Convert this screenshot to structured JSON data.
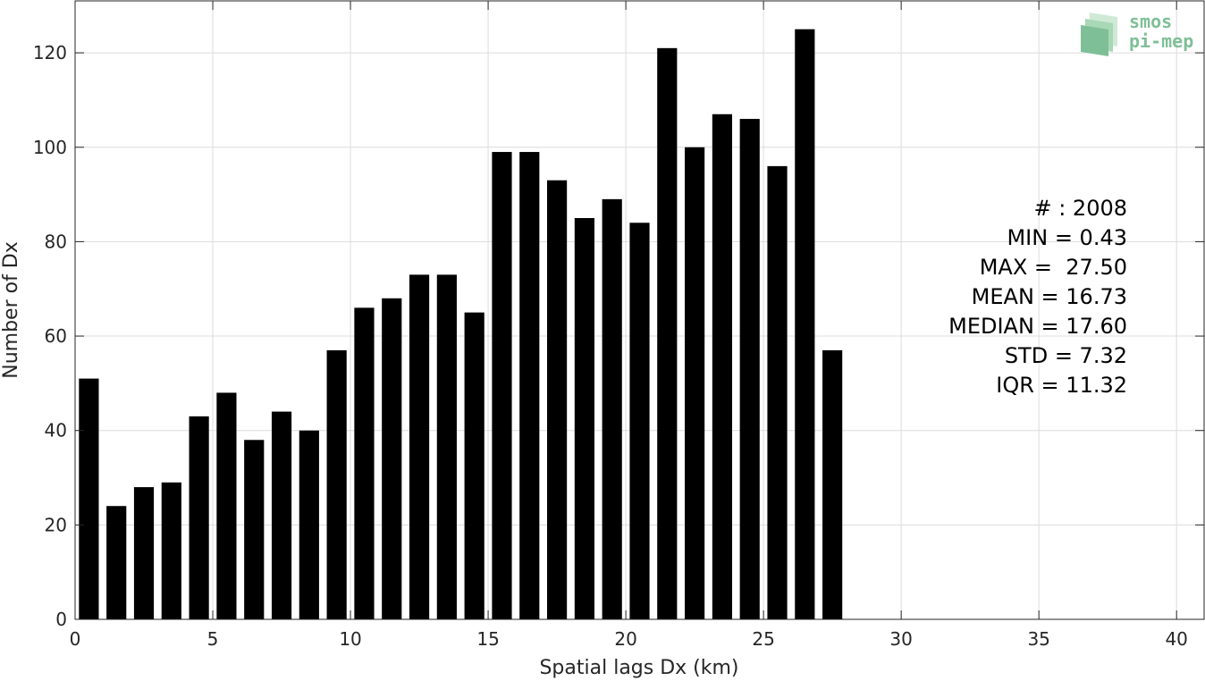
{
  "chart_data": {
    "type": "bar",
    "xlabel": "Spatial lags Dx (km)",
    "ylabel": "Number of Dx",
    "xlim": [
      0,
      41
    ],
    "ylim": [
      0,
      131
    ],
    "xticks": [
      0,
      5,
      10,
      15,
      20,
      25,
      30,
      35,
      40
    ],
    "yticks": [
      0,
      20,
      40,
      60,
      80,
      100,
      120
    ],
    "grid": true,
    "bar_color": "#000000",
    "x": [
      0.5,
      1.5,
      2.5,
      3.5,
      4.5,
      5.5,
      6.5,
      7.5,
      8.5,
      9.5,
      10.5,
      11.5,
      12.5,
      13.5,
      14.5,
      15.5,
      16.5,
      17.5,
      18.5,
      19.5,
      20.5,
      21.5,
      22.5,
      23.5,
      24.5,
      25.5,
      26.5,
      27.5
    ],
    "values": [
      51,
      24,
      28,
      29,
      43,
      48,
      38,
      44,
      40,
      57,
      66,
      68,
      73,
      73,
      65,
      99,
      99,
      93,
      85,
      89,
      84,
      121,
      100,
      107,
      106,
      96,
      125,
      57
    ],
    "annotations": [
      "# : 2008",
      "MIN = 0.43",
      "MAX =  27.50",
      "MEAN = 16.73",
      "MEDIAN = 17.60",
      "STD = 7.32",
      "IQR = 11.32"
    ]
  },
  "logo": {
    "line1": "smos",
    "line2": "pi-mep",
    "color": "#7fbf97"
  }
}
